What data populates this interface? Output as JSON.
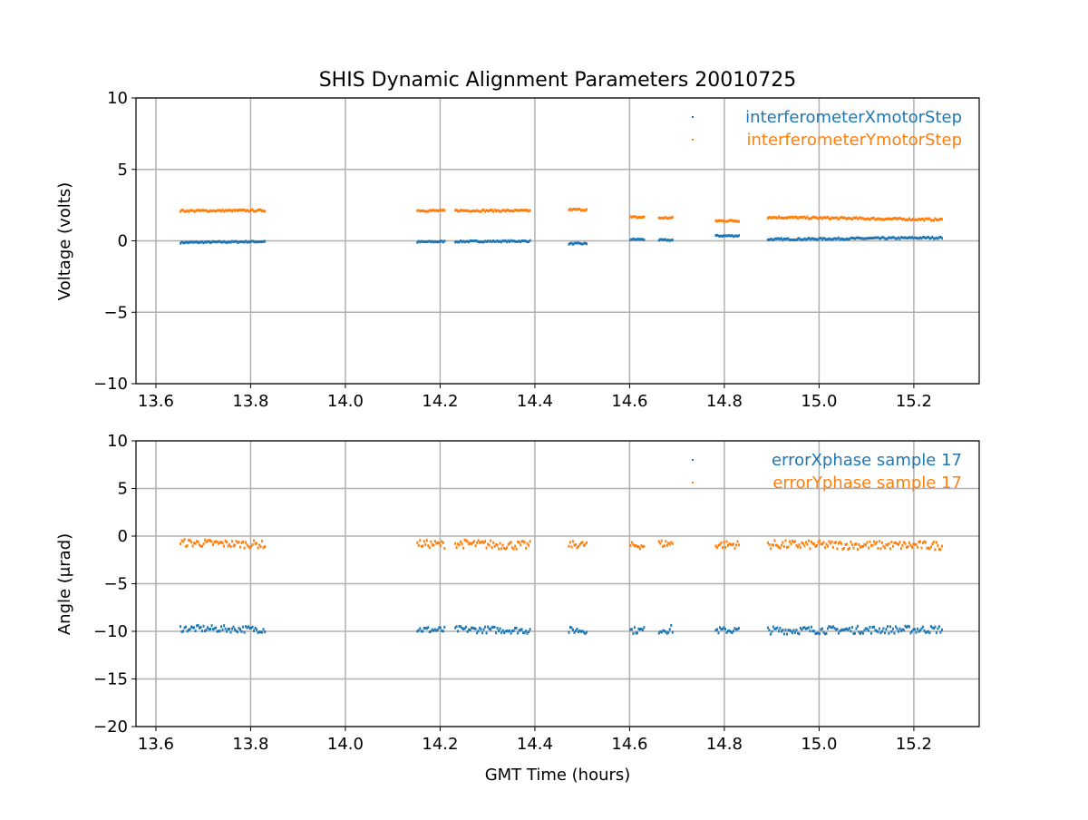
{
  "chart_data": [
    {
      "type": "scatter",
      "title": "SHIS Dynamic Alignment Parameters 20010725",
      "xlabel": "",
      "ylabel": "Voltage (volts)",
      "xlim": [
        13.558,
        15.338
      ],
      "ylim": [
        -10,
        10
      ],
      "xticks": [
        "13.6",
        "13.8",
        "14.0",
        "14.2",
        "14.4",
        "14.6",
        "14.8",
        "15.0",
        "15.2"
      ],
      "xtick_values": [
        13.6,
        13.8,
        14.0,
        14.2,
        14.4,
        14.6,
        14.8,
        15.0,
        15.2
      ],
      "yticks": [
        "10",
        "5",
        "0",
        "−5",
        "−10"
      ],
      "ytick_values": [
        10,
        5,
        0,
        -5,
        -10
      ],
      "grid": true,
      "legend_position": "top-right",
      "series": [
        {
          "name": "interferometerXmotorStep",
          "color": "#1f77b4",
          "segments_t_start_t_end_v_start_v_end_noise": [
            [
              13.65,
              13.83,
              -0.12,
              -0.05,
              0.05
            ],
            [
              14.15,
              14.21,
              -0.08,
              -0.05,
              0.05
            ],
            [
              14.23,
              14.39,
              -0.05,
              -0.02,
              0.05
            ],
            [
              14.47,
              14.51,
              -0.2,
              -0.2,
              0.05
            ],
            [
              14.6,
              14.63,
              0.1,
              0.1,
              0.05
            ],
            [
              14.66,
              14.69,
              0.05,
              0.05,
              0.05
            ],
            [
              14.78,
              14.83,
              0.35,
              0.35,
              0.05
            ],
            [
              14.89,
              15.26,
              0.1,
              0.22,
              0.06
            ]
          ]
        },
        {
          "name": "interferometerYmotorStep",
          "color": "#ff7f0e",
          "segments_t_start_t_end_v_start_v_end_noise": [
            [
              13.65,
              13.83,
              2.1,
              2.12,
              0.06
            ],
            [
              14.15,
              14.21,
              2.12,
              2.1,
              0.06
            ],
            [
              14.23,
              14.39,
              2.12,
              2.1,
              0.06
            ],
            [
              14.47,
              14.51,
              2.18,
              2.18,
              0.06
            ],
            [
              14.6,
              14.63,
              1.65,
              1.65,
              0.06
            ],
            [
              14.66,
              14.69,
              1.6,
              1.6,
              0.06
            ],
            [
              14.78,
              14.83,
              1.4,
              1.4,
              0.06
            ],
            [
              14.89,
              15.26,
              1.65,
              1.48,
              0.07
            ]
          ]
        }
      ]
    },
    {
      "type": "scatter",
      "title": "",
      "xlabel": "GMT Time (hours)",
      "ylabel": "Angle (μrad)",
      "xlim": [
        13.558,
        15.338
      ],
      "ylim": [
        -20,
        10
      ],
      "xticks": [
        "13.6",
        "13.8",
        "14.0",
        "14.2",
        "14.4",
        "14.6",
        "14.8",
        "15.0",
        "15.2"
      ],
      "xtick_values": [
        13.6,
        13.8,
        14.0,
        14.2,
        14.4,
        14.6,
        14.8,
        15.0,
        15.2
      ],
      "yticks": [
        "10",
        "5",
        "0",
        "−5",
        "−10",
        "−15",
        "−20"
      ],
      "ytick_values": [
        10,
        5,
        0,
        -5,
        -10,
        -15,
        -20
      ],
      "grid": true,
      "legend_position": "top-right",
      "series": [
        {
          "name": "errorXphase sample 17",
          "color": "#1f77b4",
          "segments_t_start_t_end_v_start_v_end_noise": [
            [
              13.65,
              13.83,
              -9.7,
              -9.8,
              0.35
            ],
            [
              14.15,
              14.21,
              -9.8,
              -9.9,
              0.35
            ],
            [
              14.23,
              14.39,
              -9.8,
              -9.9,
              0.35
            ],
            [
              14.47,
              14.51,
              -9.9,
              -9.9,
              0.35
            ],
            [
              14.6,
              14.63,
              -9.9,
              -9.9,
              0.35
            ],
            [
              14.66,
              14.69,
              -9.8,
              -9.8,
              0.45
            ],
            [
              14.78,
              14.83,
              -9.9,
              -9.9,
              0.35
            ],
            [
              14.89,
              15.26,
              -9.9,
              -9.8,
              0.4
            ]
          ]
        },
        {
          "name": "errorYphase sample 17",
          "color": "#ff7f0e",
          "segments_t_start_t_end_v_start_v_end_noise": [
            [
              13.65,
              13.83,
              -0.7,
              -0.9,
              0.4
            ],
            [
              14.15,
              14.21,
              -0.8,
              -0.9,
              0.4
            ],
            [
              14.23,
              14.39,
              -0.8,
              -1.0,
              0.45
            ],
            [
              14.47,
              14.51,
              -0.9,
              -0.9,
              0.35
            ],
            [
              14.6,
              14.63,
              -1.0,
              -1.0,
              0.35
            ],
            [
              14.66,
              14.69,
              -0.8,
              -0.8,
              0.4
            ],
            [
              14.78,
              14.83,
              -0.9,
              -0.9,
              0.4
            ],
            [
              14.89,
              15.26,
              -0.9,
              -1.0,
              0.45
            ]
          ]
        }
      ]
    }
  ]
}
